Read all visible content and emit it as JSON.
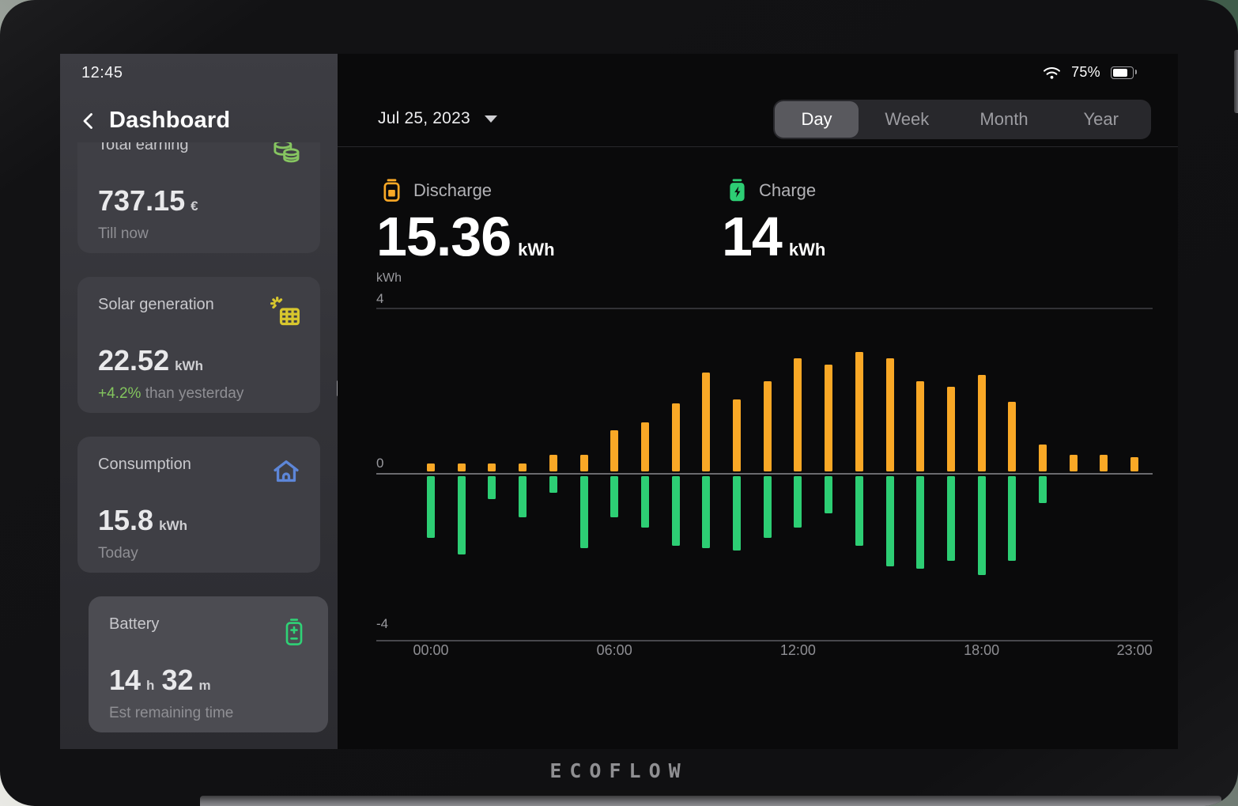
{
  "status_bar": {
    "time": "12:45",
    "battery_percent": "75%"
  },
  "sidebar": {
    "title": "Dashboard",
    "cards": [
      {
        "title": "Total earning",
        "icon": "coins-icon",
        "value": "737.15",
        "unit": "€",
        "subtitle": "Till now"
      },
      {
        "title": "Solar generation",
        "icon": "solar-panel-icon",
        "value": "22.52",
        "unit": "kWh",
        "subtitle_highlight": "+4.2%",
        "subtitle": "than yesterday"
      },
      {
        "title": "Consumption",
        "icon": "house-icon",
        "value": "15.8",
        "unit": "kWh",
        "subtitle": "Today"
      },
      {
        "title": "Battery",
        "icon": "battery-plus-icon",
        "value": "14",
        "unit": "h",
        "value2": "32",
        "unit2": "m",
        "subtitle": "Est remaining time",
        "selected": true
      }
    ]
  },
  "main": {
    "date_label": "Jul 25, 2023",
    "tabs": [
      "Day",
      "Week",
      "Month",
      "Year"
    ],
    "active_tab": "Day",
    "legend": [
      {
        "label": "Discharge",
        "value": "15.36",
        "unit": "kWh",
        "color": "#F9A826",
        "icon": "battery-discharge-icon"
      },
      {
        "label": "Charge",
        "value": "14",
        "unit": "kWh",
        "color": "#2DCE74",
        "icon": "battery-charge-icon"
      }
    ]
  },
  "chart_data": {
    "type": "bar",
    "unit_label": "kWh",
    "x": [
      "00:00",
      "01:00",
      "02:00",
      "03:00",
      "04:00",
      "05:00",
      "06:00",
      "07:00",
      "08:00",
      "09:00",
      "10:00",
      "11:00",
      "12:00",
      "13:00",
      "14:00",
      "15:00",
      "16:00",
      "17:00",
      "18:00",
      "19:00",
      "20:00",
      "21:00",
      "22:00",
      "23:00"
    ],
    "x_tick_labels": [
      "00:00",
      "06:00",
      "12:00",
      "18:00",
      "23:00"
    ],
    "ylim": [
      -4,
      4
    ],
    "y_ticks": [
      4,
      0,
      -4
    ],
    "grid": "horizontal-only",
    "legend_position": "top",
    "series": [
      {
        "name": "Discharge",
        "color": "#F9A826",
        "values": [
          0.2,
          0.2,
          0.2,
          0.2,
          0.4,
          0.4,
          1.0,
          1.2,
          1.65,
          2.4,
          1.75,
          2.2,
          2.75,
          2.6,
          2.9,
          2.75,
          2.2,
          2.05,
          2.35,
          1.7,
          0.65,
          0.4,
          0.4,
          0.35
        ]
      },
      {
        "name": "Charge",
        "color": "#2DCE74",
        "values": [
          -1.5,
          -1.9,
          -0.55,
          -1.0,
          -0.4,
          -1.75,
          -1.0,
          -1.25,
          -1.7,
          -1.75,
          -1.8,
          -1.5,
          -1.25,
          -0.9,
          -1.7,
          -2.2,
          -2.25,
          -2.05,
          -2.4,
          -2.05,
          -0.65,
          0,
          0,
          0
        ]
      }
    ]
  },
  "device": {
    "logo": "ECOFLOW"
  }
}
